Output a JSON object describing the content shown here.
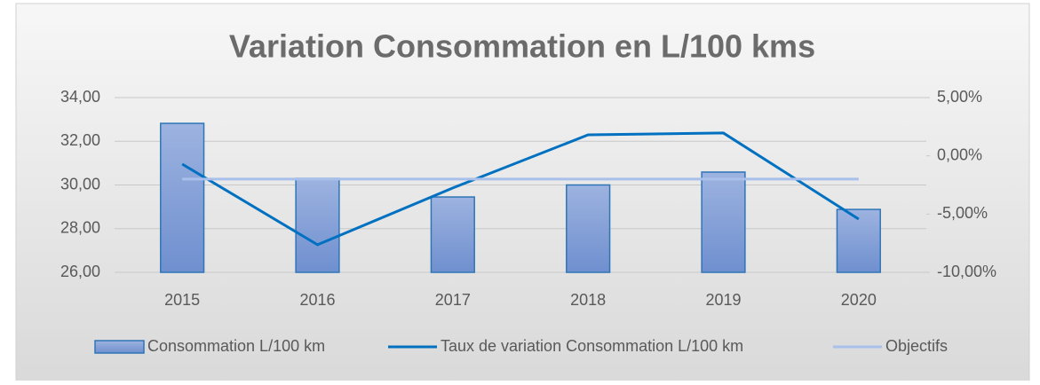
{
  "chart_data": {
    "type": "combo",
    "title": "Variation Consommation en L/100 kms",
    "categories": [
      "2015",
      "2016",
      "2017",
      "2018",
      "2019",
      "2020"
    ],
    "series": [
      {
        "name": "Consommation L/100 km",
        "type": "bar",
        "color": "#7f9fd8",
        "values": [
          32.82,
          30.3,
          29.45,
          30.0,
          30.59,
          28.88
        ]
      },
      {
        "name": "Taux de variation Consommation L/100 km",
        "type": "line",
        "axis": "y2",
        "color": "#0070c0",
        "values": [
          -0.71,
          -7.63,
          -2.76,
          1.8,
          1.96,
          -5.43
        ]
      },
      {
        "name": "Objectifs",
        "type": "line",
        "axis": "y2",
        "color": "#a9c0ea",
        "values": [
          -2.0,
          -2.0,
          -2.0,
          -2.0,
          -2.0,
          -2.0
        ]
      }
    ],
    "ylim": [
      26,
      34
    ],
    "yticks": [
      {
        "value": 26,
        "label": "26,00"
      },
      {
        "value": 28,
        "label": "28,00"
      },
      {
        "value": 30,
        "label": "30,00"
      },
      {
        "value": 32,
        "label": "32,00"
      },
      {
        "value": 34,
        "label": "34,00"
      }
    ],
    "y2lim": [
      -10,
      5
    ],
    "y2ticks": [
      {
        "value": -10,
        "label": "-10,00%"
      },
      {
        "value": -5,
        "label": "-5,00%"
      },
      {
        "value": 0,
        "label": "0,00%"
      },
      {
        "value": 5,
        "label": "5,00%"
      }
    ],
    "grid": true,
    "legend": "bottom"
  }
}
